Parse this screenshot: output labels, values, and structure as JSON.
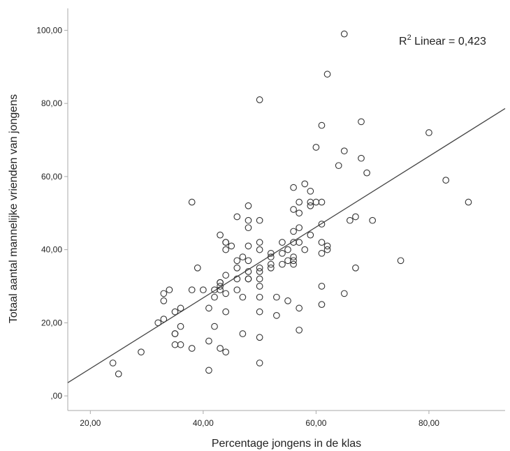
{
  "chart_data": {
    "type": "scatter",
    "xlabel": "Percentage jongens in de klas",
    "ylabel": "Totaal aantal mannelijke vrienden van jongens",
    "annotation": {
      "prefix": "R",
      "sup": "2",
      "suffix": " Linear = 0,423"
    },
    "xlim": [
      16,
      93.5
    ],
    "ylim": [
      -4,
      106
    ],
    "x_ticks": [
      {
        "value": 20,
        "label": "20,00"
      },
      {
        "value": 40,
        "label": "40,00"
      },
      {
        "value": 60,
        "label": "60,00"
      },
      {
        "value": 80,
        "label": "80,00"
      }
    ],
    "y_ticks": [
      {
        "value": 0,
        "label": ",00"
      },
      {
        "value": 20,
        "label": "20,00"
      },
      {
        "value": 40,
        "label": "40,00"
      },
      {
        "value": 60,
        "label": "60,00"
      },
      {
        "value": 80,
        "label": "80,00"
      },
      {
        "value": 100,
        "label": "100,00"
      }
    ],
    "fit_line": {
      "x": [
        16,
        93.5
      ],
      "y": [
        3.6,
        78.6
      ]
    },
    "grid": false,
    "point_color": "#333333",
    "line_color": "#444444",
    "points": [
      [
        65,
        99
      ],
      [
        62,
        88
      ],
      [
        50,
        81
      ],
      [
        68,
        75
      ],
      [
        61,
        74
      ],
      [
        80,
        72
      ],
      [
        60,
        68
      ],
      [
        65,
        67
      ],
      [
        68,
        65
      ],
      [
        64,
        63
      ],
      [
        69,
        61
      ],
      [
        83,
        59
      ],
      [
        58,
        58
      ],
      [
        56,
        57
      ],
      [
        59,
        56
      ],
      [
        38,
        53
      ],
      [
        57,
        53
      ],
      [
        59,
        53
      ],
      [
        60,
        53
      ],
      [
        61,
        53
      ],
      [
        87,
        53
      ],
      [
        59,
        52
      ],
      [
        48,
        52
      ],
      [
        56,
        51
      ],
      [
        57,
        50
      ],
      [
        46,
        49
      ],
      [
        67,
        49
      ],
      [
        48,
        48
      ],
      [
        50,
        48
      ],
      [
        66,
        48
      ],
      [
        70,
        48
      ],
      [
        61,
        47
      ],
      [
        48,
        46
      ],
      [
        57,
        46
      ],
      [
        56,
        45
      ],
      [
        59,
        44
      ],
      [
        43,
        44
      ],
      [
        44,
        42
      ],
      [
        44,
        42
      ],
      [
        50,
        42
      ],
      [
        54,
        42
      ],
      [
        56,
        42
      ],
      [
        57,
        42
      ],
      [
        61,
        42
      ],
      [
        45,
        41
      ],
      [
        48,
        41
      ],
      [
        62,
        41
      ],
      [
        44,
        40
      ],
      [
        50,
        40
      ],
      [
        55,
        40
      ],
      [
        58,
        40
      ],
      [
        62,
        40
      ],
      [
        52,
        39
      ],
      [
        54,
        39
      ],
      [
        61,
        39
      ],
      [
        47,
        38
      ],
      [
        52,
        38
      ],
      [
        56,
        38
      ],
      [
        46,
        37
      ],
      [
        48,
        37
      ],
      [
        55,
        37
      ],
      [
        56,
        37
      ],
      [
        75,
        37
      ],
      [
        52,
        36
      ],
      [
        54,
        36
      ],
      [
        56,
        36
      ],
      [
        46,
        35
      ],
      [
        50,
        35
      ],
      [
        39,
        35
      ],
      [
        52,
        35
      ],
      [
        67,
        35
      ],
      [
        48,
        34
      ],
      [
        50,
        34
      ],
      [
        44,
        33
      ],
      [
        46,
        32
      ],
      [
        48,
        32
      ],
      [
        48,
        32
      ],
      [
        50,
        32
      ],
      [
        43,
        31
      ],
      [
        43,
        31
      ],
      [
        43,
        30
      ],
      [
        50,
        30
      ],
      [
        61,
        30
      ],
      [
        38,
        29
      ],
      [
        40,
        29
      ],
      [
        42,
        29
      ],
      [
        43,
        29
      ],
      [
        34,
        29
      ],
      [
        46,
        29
      ],
      [
        33,
        28
      ],
      [
        44,
        28
      ],
      [
        65,
        28
      ],
      [
        42,
        27
      ],
      [
        47,
        27
      ],
      [
        50,
        27
      ],
      [
        53,
        27
      ],
      [
        33,
        26
      ],
      [
        55,
        26
      ],
      [
        61,
        25
      ],
      [
        36,
        24
      ],
      [
        41,
        24
      ],
      [
        57,
        24
      ],
      [
        35,
        23
      ],
      [
        44,
        23
      ],
      [
        50,
        23
      ],
      [
        53,
        22
      ],
      [
        33,
        21
      ],
      [
        32,
        20
      ],
      [
        36,
        19
      ],
      [
        42,
        19
      ],
      [
        57,
        18
      ],
      [
        35,
        17
      ],
      [
        35,
        17
      ],
      [
        47,
        17
      ],
      [
        50,
        16
      ],
      [
        41,
        15
      ],
      [
        35,
        14
      ],
      [
        36,
        14
      ],
      [
        38,
        13
      ],
      [
        43,
        13
      ],
      [
        29,
        12
      ],
      [
        44,
        12
      ],
      [
        24,
        9
      ],
      [
        50,
        9
      ],
      [
        41,
        7
      ],
      [
        25,
        6
      ]
    ]
  }
}
